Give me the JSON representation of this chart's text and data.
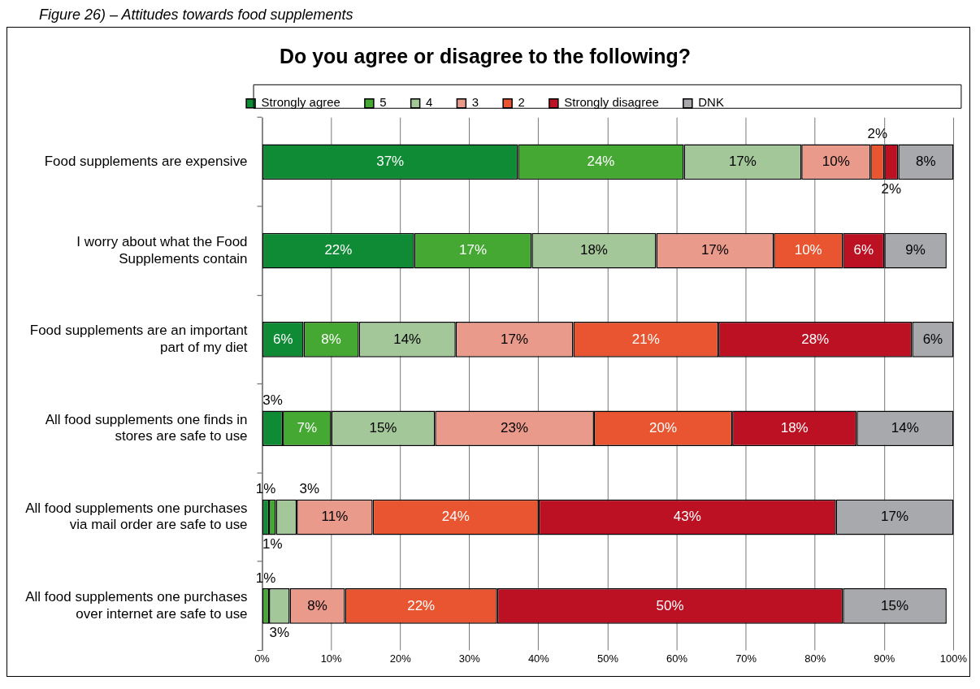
{
  "chart_data": {
    "type": "bar",
    "orientation": "horizontal",
    "stacked": true,
    "title": "Do you agree or disagree to the following?",
    "annotations": [
      "Figure 26) – Attitudes towards food supplements"
    ],
    "categories": [
      "Food supplements are expensive",
      "I worry about what the Food Supplements contain",
      "Food supplements are an important part of my diet",
      "All food supplements one finds in stores are safe to use",
      "All food supplements one purchases via mail order are safe to use",
      "All food supplements one purchases over internet are safe to use"
    ],
    "series": [
      {
        "name": "Strongly agree",
        "color": "#0f8a35",
        "values": [
          37,
          22,
          6,
          3,
          1,
          0
        ],
        "value_labels": [
          "37%",
          "22%",
          "6%",
          "3%",
          "1%",
          null
        ]
      },
      {
        "name": "5",
        "color": "#44a832",
        "values": [
          24,
          17,
          8,
          7,
          1,
          1
        ],
        "value_labels": [
          "24%",
          "17%",
          "8%",
          "7%",
          "1%",
          "1%"
        ]
      },
      {
        "name": "4",
        "color": "#a4c79a",
        "values": [
          17,
          18,
          14,
          15,
          3,
          3
        ],
        "value_labels": [
          "17%",
          "18%",
          "14%",
          "15%",
          "3%",
          "3%"
        ]
      },
      {
        "name": "3",
        "color": "#ea9a8a",
        "values": [
          10,
          17,
          17,
          23,
          11,
          8
        ],
        "value_labels": [
          "10%",
          "17%",
          "17%",
          "23%",
          "11%",
          "8%"
        ]
      },
      {
        "name": "2",
        "color": "#e85530",
        "values": [
          2,
          10,
          21,
          20,
          24,
          22
        ],
        "value_labels": [
          "2%",
          "10%",
          "21%",
          "20%",
          "24%",
          "22%"
        ]
      },
      {
        "name": "Strongly disagree",
        "color": "#bb1122",
        "values": [
          2,
          6,
          28,
          18,
          43,
          50
        ],
        "value_labels": [
          "2%",
          "6%",
          "28%",
          "18%",
          "43%",
          "50%"
        ]
      },
      {
        "name": "DNK",
        "color": "#a8a9ad",
        "values": [
          8,
          9,
          6,
          14,
          17,
          15
        ],
        "value_labels": [
          "8%",
          "9%",
          "6%",
          "14%",
          "17%",
          "15%"
        ]
      }
    ],
    "xlim": [
      0,
      100
    ],
    "xticks": [
      {
        "value": 0,
        "label": "0%"
      },
      {
        "value": 10,
        "label": "10%"
      },
      {
        "value": 20,
        "label": "20%"
      },
      {
        "value": 30,
        "label": "30%"
      },
      {
        "value": 40,
        "label": "40%"
      },
      {
        "value": 50,
        "label": "50%"
      },
      {
        "value": 60,
        "label": "60%"
      },
      {
        "value": 70,
        "label": "70%"
      },
      {
        "value": 80,
        "label": "80%"
      },
      {
        "value": 90,
        "label": "90%"
      },
      {
        "value": 100,
        "label": "100%"
      }
    ],
    "grid": "x",
    "legend": "top"
  }
}
